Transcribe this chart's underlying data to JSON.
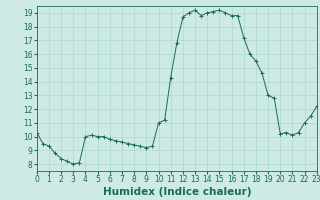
{
  "x": [
    0,
    0.5,
    1,
    1.5,
    2,
    2.5,
    3,
    3.5,
    4,
    4.5,
    5,
    5.5,
    6,
    6.5,
    7,
    7.5,
    8,
    8.5,
    9,
    9.5,
    10,
    10.5,
    11,
    11.5,
    12,
    12.5,
    13,
    13.5,
    14,
    14.5,
    15,
    15.5,
    16,
    16.5,
    17,
    17.5,
    18,
    18.5,
    19,
    19.5,
    20,
    20.5,
    21,
    21.5,
    22,
    22.5,
    23
  ],
  "y": [
    10.3,
    9.5,
    9.3,
    8.8,
    8.4,
    8.2,
    8.0,
    8.1,
    10.0,
    10.1,
    10.0,
    10.0,
    9.8,
    9.7,
    9.6,
    9.5,
    9.4,
    9.3,
    9.2,
    9.3,
    11.0,
    11.2,
    14.3,
    16.8,
    18.7,
    19.0,
    19.2,
    18.8,
    19.0,
    19.1,
    19.2,
    19.0,
    18.8,
    18.8,
    17.2,
    16.0,
    15.5,
    14.6,
    13.0,
    12.8,
    10.2,
    10.3,
    10.1,
    10.3,
    11.0,
    11.5,
    12.2
  ],
  "xlabel": "Humidex (Indice chaleur)",
  "xlim": [
    0,
    23
  ],
  "ylim": [
    7.5,
    19.5
  ],
  "yticks": [
    8,
    9,
    10,
    11,
    12,
    13,
    14,
    15,
    16,
    17,
    18,
    19
  ],
  "xticks": [
    0,
    1,
    2,
    3,
    4,
    5,
    6,
    7,
    8,
    9,
    10,
    11,
    12,
    13,
    14,
    15,
    16,
    17,
    18,
    19,
    20,
    21,
    22,
    23
  ],
  "line_color": "#1a6b5a",
  "bg_color": "#cdeae4",
  "grid_color": "#afd8d0",
  "tick_label_fontsize": 5.5,
  "xlabel_fontsize": 7.5
}
